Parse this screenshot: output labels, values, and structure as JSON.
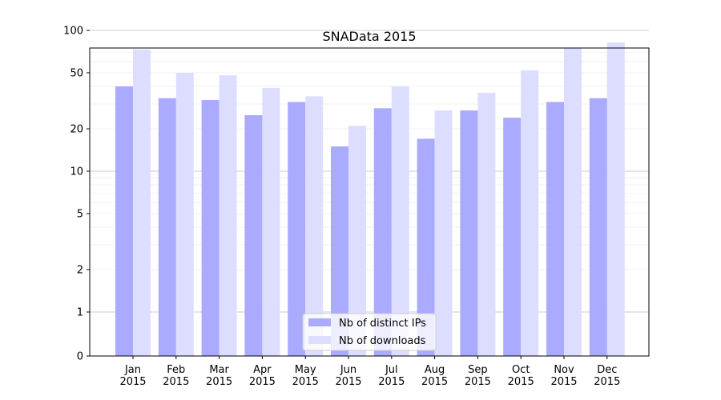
{
  "chart_data": {
    "type": "bar",
    "title": "SNAData 2015",
    "xlabel": "",
    "ylabel": "",
    "y_scale": "symlog",
    "ylim": [
      0,
      120
    ],
    "categories": [
      "Jan\n2015",
      "Feb\n2015",
      "Mar\n2015",
      "Apr\n2015",
      "May\n2015",
      "Jun\n2015",
      "Jul\n2015",
      "Aug\n2015",
      "Sep\n2015",
      "Oct\n2015",
      "Nov\n2015",
      "Dec\n2015"
    ],
    "y_ticks": [
      0,
      1,
      2,
      5,
      10,
      20,
      50,
      100
    ],
    "grid": true,
    "legend_position": "bottom-center",
    "series": [
      {
        "name": "Nb of distinct IPs",
        "color": "#aaaaff",
        "values": [
          40,
          33,
          32,
          25,
          31,
          15,
          28,
          17,
          27,
          24,
          31,
          33
        ]
      },
      {
        "name": "Nb of downloads",
        "color": "#ddddff",
        "values": [
          73,
          50,
          48,
          39,
          34,
          21,
          40,
          27,
          36,
          52,
          75,
          82
        ]
      }
    ]
  }
}
